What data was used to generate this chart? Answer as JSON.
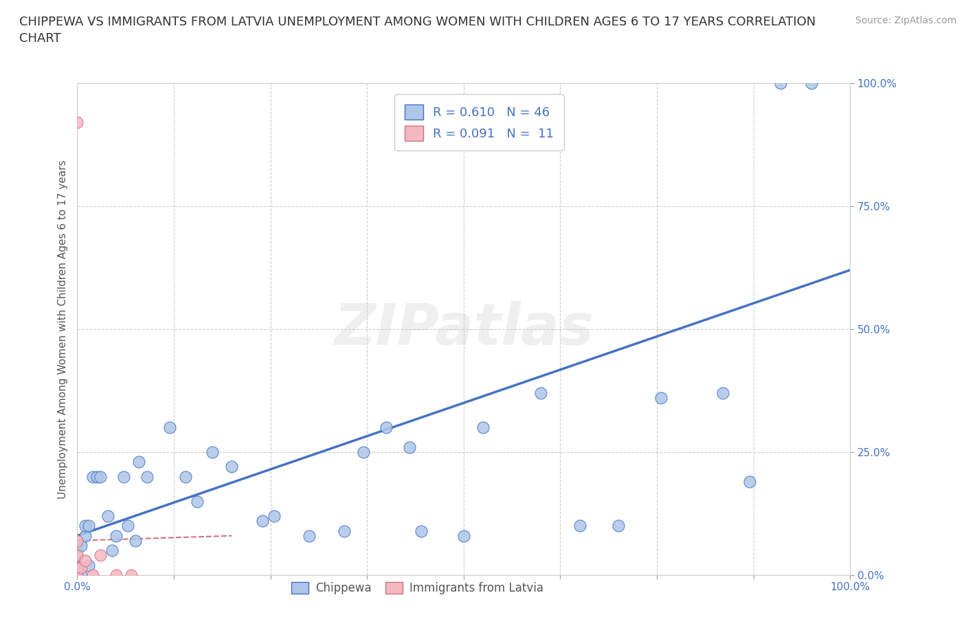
{
  "title": "CHIPPEWA VS IMMIGRANTS FROM LATVIA UNEMPLOYMENT AMONG WOMEN WITH CHILDREN AGES 6 TO 17 YEARS CORRELATION\nCHART",
  "source": "Source: ZipAtlas.com",
  "ylabel": "Unemployment Among Women with Children Ages 6 to 17 years",
  "xlim": [
    0,
    1.0
  ],
  "ylim": [
    0,
    1.0
  ],
  "xticks": [
    0.0,
    0.125,
    0.25,
    0.375,
    0.5,
    0.625,
    0.75,
    0.875,
    1.0
  ],
  "yticks": [
    0.0,
    0.25,
    0.5,
    0.75,
    1.0
  ],
  "xticklabels_show": [
    0.0,
    1.0
  ],
  "yticklabels": [
    "0.0%",
    "25.0%",
    "50.0%",
    "75.0%",
    "100.0%"
  ],
  "chippewa_color": "#aec6e8",
  "chippewa_edge": "#4472c4",
  "latvia_color": "#f4b8c1",
  "latvia_edge": "#d07080",
  "watermark_text": "ZIPatlas",
  "R_chippewa": 0.61,
  "N_chippewa": 46,
  "R_latvia": 0.091,
  "N_latvia": 11,
  "chippewa_x": [
    0.0,
    0.0,
    0.0,
    0.0,
    0.0,
    0.0,
    0.005,
    0.005,
    0.01,
    0.01,
    0.015,
    0.015,
    0.02,
    0.025,
    0.03,
    0.04,
    0.045,
    0.05,
    0.06,
    0.065,
    0.075,
    0.08,
    0.09,
    0.12,
    0.14,
    0.155,
    0.175,
    0.2,
    0.24,
    0.255,
    0.3,
    0.345,
    0.37,
    0.4,
    0.43,
    0.445,
    0.5,
    0.525,
    0.6,
    0.65,
    0.7,
    0.755,
    0.835,
    0.87,
    0.91,
    0.95
  ],
  "chippewa_y": [
    0.0,
    0.005,
    0.01,
    0.02,
    0.04,
    0.06,
    0.0,
    0.06,
    0.08,
    0.1,
    0.02,
    0.1,
    0.2,
    0.2,
    0.2,
    0.12,
    0.05,
    0.08,
    0.2,
    0.1,
    0.07,
    0.23,
    0.2,
    0.3,
    0.2,
    0.15,
    0.25,
    0.22,
    0.11,
    0.12,
    0.08,
    0.09,
    0.25,
    0.3,
    0.26,
    0.09,
    0.08,
    0.3,
    0.37,
    0.1,
    0.1,
    0.36,
    0.37,
    0.19,
    1.0,
    1.0
  ],
  "latvia_x": [
    0.0,
    0.0,
    0.0,
    0.0,
    0.0,
    0.005,
    0.01,
    0.02,
    0.03,
    0.05,
    0.07
  ],
  "latvia_y": [
    0.92,
    0.04,
    0.015,
    0.0,
    0.07,
    0.015,
    0.03,
    0.0,
    0.04,
    0.0,
    0.0
  ],
  "trend_chippewa_x0": 0.0,
  "trend_chippewa_x1": 1.0,
  "trend_chippewa_y0": 0.08,
  "trend_chippewa_y1": 0.62,
  "trend_latvia_x0": 0.0,
  "trend_latvia_x1": 0.2,
  "trend_latvia_y0": 0.07,
  "trend_latvia_y1": 0.08,
  "grid_color": "#cccccc",
  "background_color": "#ffffff",
  "tick_label_color": "#4472c4"
}
